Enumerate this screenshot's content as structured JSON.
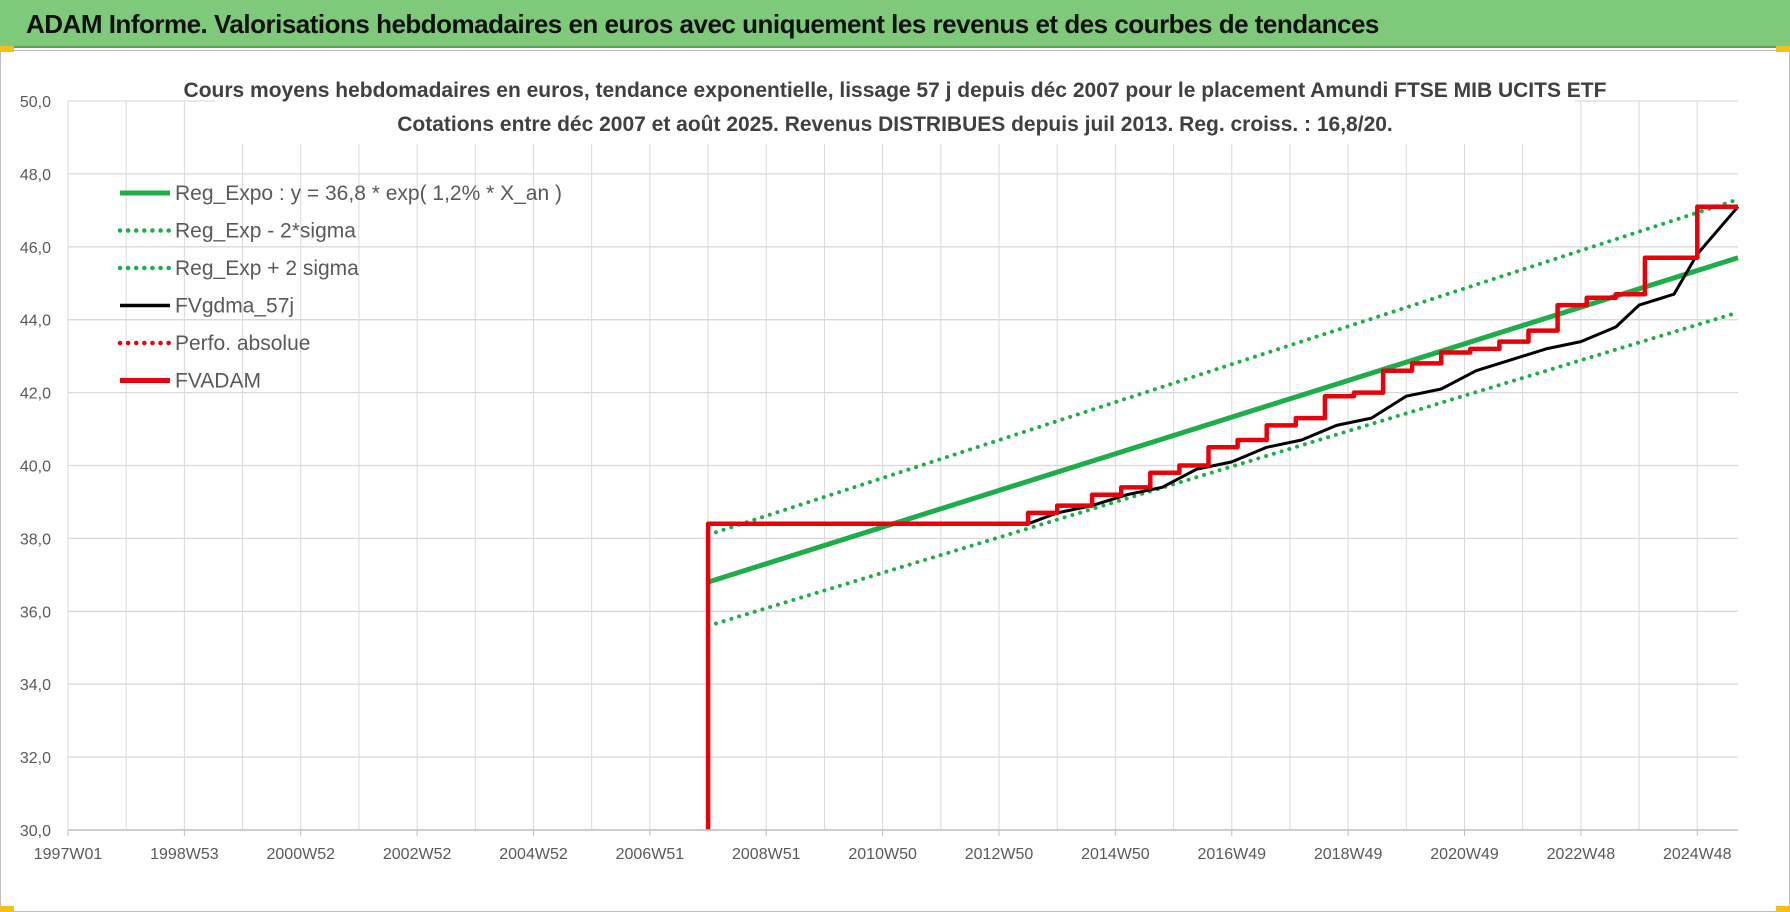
{
  "banner": {
    "title": "ADAM Informe. Valorisations hebdomadaires en euros avec uniquement les revenus et des courbes de tendances"
  },
  "colors": {
    "banner_bg": "#7fc97a",
    "reg_green": "#1fad4b",
    "black": "#000000",
    "red": "#e8000b",
    "grid": "#d9d9d9",
    "axis_text": "#595959",
    "title_text": "#404040"
  },
  "chart_data": {
    "type": "line",
    "title": "Cours moyens hebdomadaires en euros, tendance exponentielle, lissage 57 j depuis déc 2007 pour le placement Amundi FTSE MIB UCITS ETF",
    "subtitle": "Cotations entre déc 2007 et août 2025. Revenus DISTRIBUES depuis juil 2013. Reg. croiss. : 16,8/20.",
    "xlabel": "",
    "ylabel": "",
    "ylim": [
      30,
      50
    ],
    "yticks": [
      "30,0",
      "32,0",
      "34,0",
      "36,0",
      "38,0",
      "40,0",
      "42,0",
      "44,0",
      "46,0",
      "48,0",
      "50,0"
    ],
    "xlim": [
      1997.0,
      2025.7
    ],
    "xticks": [
      {
        "label": "1997W01",
        "x": 1997.0
      },
      {
        "label": "1998W53",
        "x": 1999.0
      },
      {
        "label": "2000W52",
        "x": 2001.0
      },
      {
        "label": "2002W52",
        "x": 2003.0
      },
      {
        "label": "2004W52",
        "x": 2005.0
      },
      {
        "label": "2006W51",
        "x": 2007.0
      },
      {
        "label": "2008W51",
        "x": 2009.0
      },
      {
        "label": "2010W50",
        "x": 2011.0
      },
      {
        "label": "2012W50",
        "x": 2013.0
      },
      {
        "label": "2014W50",
        "x": 2015.0
      },
      {
        "label": "2016W49",
        "x": 2017.0
      },
      {
        "label": "2018W49",
        "x": 2019.0
      },
      {
        "label": "2020W49",
        "x": 2021.0
      },
      {
        "label": "2022W48",
        "x": 2023.0
      },
      {
        "label": "2024W48",
        "x": 2025.0
      }
    ],
    "grid": "on",
    "legend_position": "top-left",
    "series": [
      {
        "name": "Reg_Expo : y = 36,8 * exp( 1,2% *  X_an )",
        "style": "solid-thick",
        "color": "#1fad4b",
        "x": [
          2008.0,
          2025.7
        ],
        "y": [
          36.8,
          45.7
        ]
      },
      {
        "name": "Reg_Exp - 2*sigma",
        "style": "dotted",
        "color": "#1fad4b",
        "x": [
          2008.0,
          2025.7
        ],
        "y": [
          35.6,
          44.2
        ]
      },
      {
        "name": "Reg_Exp + 2 sigma",
        "style": "dotted",
        "color": "#1fad4b",
        "x": [
          2008.0,
          2025.7
        ],
        "y": [
          38.1,
          47.3
        ]
      },
      {
        "name": "FVgdma_57j",
        "style": "solid",
        "color": "#000000",
        "x": [
          2008.0,
          2013.5,
          2014.0,
          2014.6,
          2015.2,
          2015.8,
          2016.4,
          2017.0,
          2017.6,
          2018.2,
          2018.8,
          2019.4,
          2020.0,
          2020.6,
          2021.2,
          2021.8,
          2022.4,
          2023.0,
          2023.6,
          2024.0,
          2024.6,
          2025.0,
          2025.7
        ],
        "y": [
          38.4,
          38.4,
          38.7,
          38.9,
          39.2,
          39.4,
          39.9,
          40.1,
          40.5,
          40.7,
          41.1,
          41.3,
          41.9,
          42.1,
          42.6,
          42.9,
          43.2,
          43.4,
          43.8,
          44.4,
          44.7,
          45.8,
          47.1
        ]
      },
      {
        "name": "Perfo. absolue",
        "style": "dotted",
        "color": "#e8000b",
        "x": [],
        "y": []
      },
      {
        "name": "FVADAM",
        "style": "step-thick",
        "color": "#e8000b",
        "x": [
          2008.0,
          2008.0,
          2013.5,
          2013.5,
          2014.0,
          2014.0,
          2014.6,
          2014.6,
          2015.1,
          2015.1,
          2015.6,
          2015.6,
          2016.1,
          2016.1,
          2016.6,
          2016.6,
          2017.1,
          2017.1,
          2017.6,
          2017.6,
          2018.1,
          2018.1,
          2018.6,
          2018.6,
          2019.1,
          2019.1,
          2019.6,
          2019.6,
          2020.1,
          2020.1,
          2020.6,
          2020.6,
          2021.1,
          2021.1,
          2021.6,
          2021.6,
          2022.1,
          2022.1,
          2022.6,
          2022.6,
          2023.1,
          2023.1,
          2023.6,
          2023.6,
          2024.1,
          2024.1,
          2025.0,
          2025.0,
          2025.7
        ],
        "y": [
          30.0,
          38.4,
          38.4,
          38.7,
          38.7,
          38.9,
          38.9,
          39.2,
          39.2,
          39.4,
          39.4,
          39.8,
          39.8,
          40.0,
          40.0,
          40.5,
          40.5,
          40.7,
          40.7,
          41.1,
          41.1,
          41.3,
          41.3,
          41.9,
          41.9,
          42.0,
          42.0,
          42.6,
          42.6,
          42.8,
          42.8,
          43.1,
          43.1,
          43.2,
          43.2,
          43.4,
          43.4,
          43.7,
          43.7,
          44.4,
          44.4,
          44.6,
          44.6,
          44.7,
          44.7,
          45.7,
          45.7,
          47.1,
          47.1
        ]
      }
    ]
  }
}
